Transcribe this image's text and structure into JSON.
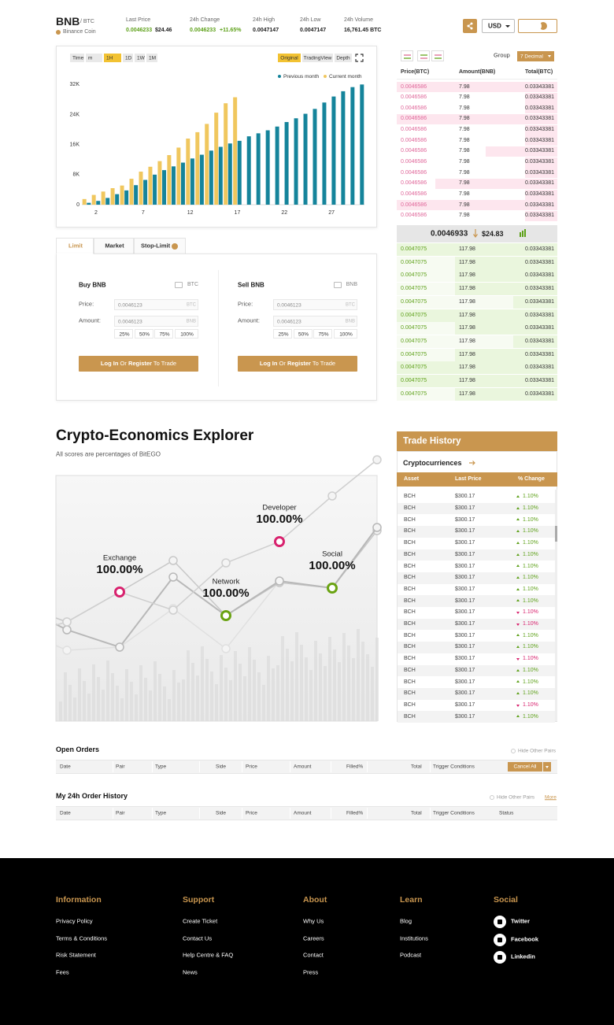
{
  "header": {
    "symbol": "BNB",
    "quote": "/ BTC",
    "name": "Binance Coin",
    "stats": [
      {
        "label": "Last Price",
        "value": "0.0046233",
        "extra": "$24.46"
      },
      {
        "label": "24h Change",
        "value": "0.0046233",
        "extra": "+11.65%"
      },
      {
        "label": "24h High",
        "value": "0.0047147"
      },
      {
        "label": "24h Low",
        "value": "0.0047147"
      },
      {
        "label": "24h Volume",
        "value": "16,761.45 BTC"
      }
    ],
    "currency": "USD"
  },
  "chart_toolbar": {
    "intervals": [
      "Time",
      "m",
      "1H",
      "1D",
      "1W",
      "1M"
    ],
    "active_interval": "1H",
    "views": [
      "Original",
      "TradingView",
      "Depth"
    ],
    "active_view": "Original"
  },
  "chart_data": {
    "type": "bar",
    "x": [
      1,
      2,
      3,
      4,
      5,
      6,
      7,
      8,
      9,
      10,
      11,
      12,
      13,
      14,
      15,
      16,
      17,
      18,
      19,
      20,
      21,
      22,
      23,
      24,
      25,
      26,
      27,
      28,
      29,
      30
    ],
    "xlim": [
      0.5,
      30.5
    ],
    "xticks": [
      2,
      7,
      12,
      17,
      22,
      27
    ],
    "ylim": [
      0,
      35000
    ],
    "yticks": [
      0,
      {
        "value": 8000,
        "label": "8K"
      },
      {
        "value": 16000,
        "label": "16K"
      },
      {
        "value": 24000,
        "label": "24K"
      },
      {
        "value": 32000,
        "label": "32K"
      }
    ],
    "grid": false,
    "legend": "top-right",
    "series": [
      {
        "name": "Previous month",
        "color": "#15849b",
        "values": [
          500,
          1000,
          1800,
          2800,
          3800,
          5200,
          6600,
          8000,
          9200,
          10200,
          11200,
          12300,
          13300,
          14400,
          15400,
          16300,
          17000,
          18200,
          19000,
          19800,
          20800,
          22000,
          23000,
          24200,
          25500,
          27200,
          28800,
          30200,
          31300,
          32000
        ]
      },
      {
        "name": "Current month",
        "color": "#f0c75e",
        "values": [
          1500,
          2600,
          3500,
          4400,
          5100,
          6900,
          8800,
          10100,
          11600,
          13200,
          15200,
          17600,
          19300,
          21500,
          24500,
          27000,
          28600,
          null,
          null,
          null,
          null,
          null,
          null,
          null,
          null,
          null,
          null,
          null,
          null,
          null
        ]
      }
    ]
  },
  "trade_form": {
    "tabs": [
      "Limit",
      "Market",
      "Stop-Limit"
    ],
    "active_tab": "Limit",
    "panels": [
      {
        "title": "Buy BNB",
        "wallet": "BTC",
        "price_label": "Price:",
        "price": "0.0046123",
        "price_unit": "BTC",
        "amount_label": "Amount:",
        "amount": "0.0046123",
        "amount_unit": "BNB",
        "percents": [
          "25%",
          "50%",
          "75%",
          "100%"
        ],
        "button": [
          "Log In",
          "Or",
          "Register",
          "To Trade"
        ]
      },
      {
        "title": "Sell BNB",
        "wallet": "BNB",
        "price_label": "Price:",
        "price": "0.0046123",
        "price_unit": "BTC",
        "amount_label": "Amount:",
        "amount": "0.0046123",
        "amount_unit": "BNB",
        "percents": [
          "25%",
          "50%",
          "75%",
          "100%"
        ],
        "button": [
          "Log In",
          "Or",
          "Register",
          "To Trade"
        ]
      }
    ]
  },
  "order_book": {
    "group_label": "Group",
    "decimal": "7 Decimal",
    "headers": [
      "Price(BTC)",
      "Amount(BNB)",
      "Total(BTC)"
    ],
    "asks": [
      [
        "0.0046586",
        "7.98",
        "0.03343381"
      ],
      [
        "0.0046586",
        "7.98",
        "0.03343381"
      ],
      [
        "0.0046586",
        "7.98",
        "0.03343381"
      ],
      [
        "0.0046586",
        "7.98",
        "0.03343381"
      ],
      [
        "0.0046586",
        "7.98",
        "0.03343381"
      ],
      [
        "0.0046586",
        "7.98",
        "0.03343381"
      ],
      [
        "0.0046586",
        "7.98",
        "0.03343381"
      ],
      [
        "0.0046586",
        "7.98",
        "0.03343381"
      ],
      [
        "0.0046586",
        "7.98",
        "0.03343381"
      ],
      [
        "0.0046586",
        "7.98",
        "0.03343381"
      ],
      [
        "0.0046586",
        "7.98",
        "0.03343381"
      ],
      [
        "0.0046586",
        "7.98",
        "0.03343381"
      ],
      [
        "0.0046586",
        "7.98",
        "0.03343381"
      ]
    ],
    "mid": {
      "price": "0.0046933",
      "usd": "$24.83"
    },
    "bids": [
      [
        "0.0047075",
        "117.98",
        "0.03343381"
      ],
      [
        "0.0047075",
        "117.98",
        "0.03343381"
      ],
      [
        "0.0047075",
        "117.98",
        "0.03343381"
      ],
      [
        "0.0047075",
        "117.98",
        "0.03343381"
      ],
      [
        "0.0047075",
        "117.98",
        "0.03343381"
      ],
      [
        "0.0047075",
        "117.98",
        "0.03343381"
      ],
      [
        "0.0047075",
        "117.98",
        "0.03343381"
      ],
      [
        "0.0047075",
        "117.98",
        "0.03343381"
      ],
      [
        "0.0047075",
        "117.98",
        "0.03343381"
      ],
      [
        "0.0047075",
        "117.98",
        "0.03343381"
      ],
      [
        "0.0047075",
        "117.98",
        "0.03343381"
      ],
      [
        "0.0047075",
        "117.98",
        "0.03343381"
      ]
    ]
  },
  "explorer": {
    "title": "Crypto-Economics Explorer",
    "subtitle": "All scores are percentages of BitEGO",
    "nodes": [
      {
        "label": "Developer",
        "score": "100.00%",
        "color": "#d8226e"
      },
      {
        "label": "Exchange",
        "score": "100.00%",
        "color": "#d8226e"
      },
      {
        "label": "Social",
        "score": "100.00%",
        "color": "#6aa312"
      },
      {
        "label": "Network",
        "score": "100.00%",
        "color": "#6aa312"
      }
    ]
  },
  "trade_history": {
    "title": "Trade History",
    "tab": "Cryptocurriences",
    "headers": [
      "Asset",
      "Last Price",
      "% Change"
    ],
    "rows": [
      {
        "asset": "BCH",
        "price": "$300.17",
        "change": "1.10%",
        "direction": "up"
      },
      {
        "asset": "BCH",
        "price": "$300.17",
        "change": "1.10%",
        "direction": "up"
      },
      {
        "asset": "BCH",
        "price": "$300.17",
        "change": "1.10%",
        "direction": "up"
      },
      {
        "asset": "BCH",
        "price": "$300.17",
        "change": "1.10%",
        "direction": "up"
      },
      {
        "asset": "BCH",
        "price": "$300.17",
        "change": "1.10%",
        "direction": "up"
      },
      {
        "asset": "BCH",
        "price": "$300.17",
        "change": "1.10%",
        "direction": "up"
      },
      {
        "asset": "BCH",
        "price": "$300.17",
        "change": "1.10%",
        "direction": "up"
      },
      {
        "asset": "BCH",
        "price": "$300.17",
        "change": "1.10%",
        "direction": "up"
      },
      {
        "asset": "BCH",
        "price": "$300.17",
        "change": "1.10%",
        "direction": "up"
      },
      {
        "asset": "BCH",
        "price": "$300.17",
        "change": "1.10%",
        "direction": "up"
      },
      {
        "asset": "BCH",
        "price": "$300.17",
        "change": "1.10%",
        "direction": "down"
      },
      {
        "asset": "BCH",
        "price": "$300.17",
        "change": "1.10%",
        "direction": "down"
      },
      {
        "asset": "BCH",
        "price": "$300.17",
        "change": "1.10%",
        "direction": "up"
      },
      {
        "asset": "BCH",
        "price": "$300.17",
        "change": "1.10%",
        "direction": "up"
      },
      {
        "asset": "BCH",
        "price": "$300.17",
        "change": "1.10%",
        "direction": "down"
      },
      {
        "asset": "BCH",
        "price": "$300.17",
        "change": "1.10%",
        "direction": "up"
      },
      {
        "asset": "BCH",
        "price": "$300.17",
        "change": "1.10%",
        "direction": "up"
      },
      {
        "asset": "BCH",
        "price": "$300.17",
        "change": "1.10%",
        "direction": "up"
      },
      {
        "asset": "BCH",
        "price": "$300.17",
        "change": "1.10%",
        "direction": "down"
      },
      {
        "asset": "BCH",
        "price": "$300.17",
        "change": "1.10%",
        "direction": "up"
      }
    ]
  },
  "open_orders": {
    "title": "Open Orders",
    "hide_label": "Hide Other Pairs",
    "button": "Cancel All",
    "columns": [
      "Date",
      "Pair",
      "Type",
      "Side",
      "Price",
      "Amount",
      "Filled%",
      "Total",
      "Trigger Conditions"
    ]
  },
  "order_history": {
    "title": "My 24h Order History",
    "hide_label": "Hide Other Pairs",
    "more": "More",
    "columns": [
      "Date",
      "Pair",
      "Type",
      "Side",
      "Price",
      "Amount",
      "Filled%",
      "Total",
      "Trigger Conditions",
      "Status"
    ]
  },
  "footer": {
    "columns": [
      {
        "title": "Information",
        "links": [
          "Privacy Policy",
          "Terms & Conditions",
          "Risk Statement",
          "Fees"
        ]
      },
      {
        "title": "Support",
        "links": [
          "Create Ticket",
          "Contact Us",
          "Help Centre & FAQ",
          "News"
        ]
      },
      {
        "title": "About",
        "links": [
          "Why Us",
          "Careers",
          "Contact",
          "Press"
        ]
      },
      {
        "title": "Learn",
        "links": [
          "Blog",
          "Institutions",
          "Podcast"
        ]
      },
      {
        "title": "Social",
        "links": [
          "Twitter",
          "Facebook",
          "Linkedin"
        ]
      }
    ]
  }
}
